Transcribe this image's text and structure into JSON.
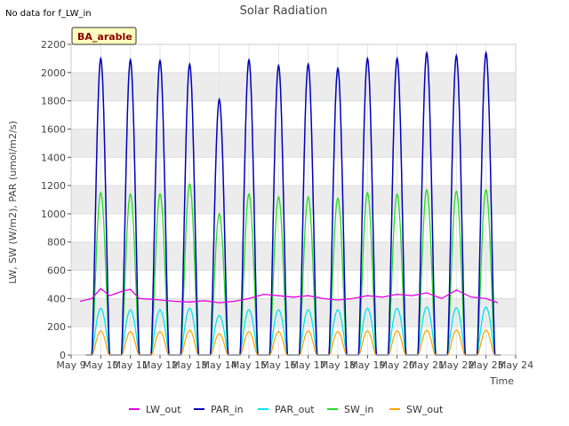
{
  "chart_data": {
    "type": "line",
    "title": "Solar Radiation",
    "note": "No data for f_LW_in",
    "badge": "BA_arable",
    "xlabel": "Time",
    "ylabel": "LW, SW (W/m2), PAR (umol/m2/s)",
    "x_ticks": [
      "May 9",
      "May 10",
      "May 11",
      "May 12",
      "May 13",
      "May 14",
      "May 15",
      "May 16",
      "May 17",
      "May 18",
      "May 19",
      "May 20",
      "May 21",
      "May 22",
      "May 23",
      "May 24"
    ],
    "xlim_days": [
      9,
      24
    ],
    "ylim": [
      0,
      2200
    ],
    "y_ticks": [
      0,
      200,
      400,
      600,
      800,
      1000,
      1200,
      1400,
      1600,
      1800,
      2000,
      2200
    ],
    "grid": true,
    "legend_position": "bottom",
    "day_peaks": [
      {
        "day": "May 9",
        "PAR_in": 2100,
        "SW_in": 1150,
        "PAR_out": 330,
        "SW_out": 170
      },
      {
        "day": "May 10",
        "PAR_in": 2090,
        "SW_in": 1140,
        "PAR_out": 320,
        "SW_out": 165
      },
      {
        "day": "May 11",
        "PAR_in": 2085,
        "SW_in": 1140,
        "PAR_out": 320,
        "SW_out": 165
      },
      {
        "day": "May 12",
        "PAR_in": 2060,
        "SW_in": 1210,
        "PAR_out": 330,
        "SW_out": 175
      },
      {
        "day": "May 13",
        "PAR_in": 1810,
        "SW_in": 1000,
        "PAR_out": 280,
        "SW_out": 150
      },
      {
        "day": "May 14",
        "PAR_in": 2090,
        "SW_in": 1140,
        "PAR_out": 320,
        "SW_out": 165
      },
      {
        "day": "May 15",
        "PAR_in": 2050,
        "SW_in": 1120,
        "PAR_out": 320,
        "SW_out": 165
      },
      {
        "day": "May 16",
        "PAR_in": 2060,
        "SW_in": 1120,
        "PAR_out": 320,
        "SW_out": 170
      },
      {
        "day": "May 17",
        "PAR_in": 2030,
        "SW_in": 1110,
        "PAR_out": 320,
        "SW_out": 165
      },
      {
        "day": "May 18",
        "PAR_in": 2100,
        "SW_in": 1150,
        "PAR_out": 330,
        "SW_out": 170
      },
      {
        "day": "May 19",
        "PAR_in": 2100,
        "SW_in": 1140,
        "PAR_out": 330,
        "SW_out": 170
      },
      {
        "day": "May 20",
        "PAR_in": 2140,
        "SW_in": 1170,
        "PAR_out": 340,
        "SW_out": 175
      },
      {
        "day": "May 21",
        "PAR_in": 2120,
        "SW_in": 1160,
        "PAR_out": 335,
        "SW_out": 175
      },
      {
        "day": "May 22",
        "PAR_in": 2140,
        "SW_in": 1170,
        "PAR_out": 340,
        "SW_out": 175
      }
    ],
    "LW_out": {
      "x_days": [
        9.3,
        9.7,
        10.0,
        10.3,
        10.7,
        11.0,
        11.3,
        11.7,
        12.0,
        12.5,
        13.0,
        13.5,
        14.0,
        14.5,
        15.0,
        15.5,
        16.0,
        16.5,
        17.0,
        17.5,
        18.0,
        18.5,
        19.0,
        19.5,
        20.0,
        20.5,
        21.0,
        21.5,
        22.0,
        22.5,
        23.0,
        23.4
      ],
      "values": [
        380,
        400,
        470,
        420,
        450,
        465,
        400,
        395,
        390,
        380,
        375,
        385,
        370,
        380,
        400,
        430,
        420,
        410,
        420,
        400,
        390,
        400,
        420,
        410,
        430,
        420,
        440,
        400,
        460,
        410,
        400,
        370
      ]
    },
    "series": [
      {
        "name": "LW_out",
        "color": "#e600e6"
      },
      {
        "name": "PAR_in",
        "color": "#0000bb"
      },
      {
        "name": "PAR_out",
        "color": "#00e5ee"
      },
      {
        "name": "SW_in",
        "color": "#22dd22"
      },
      {
        "name": "SW_out",
        "color": "#ffa500"
      }
    ]
  }
}
